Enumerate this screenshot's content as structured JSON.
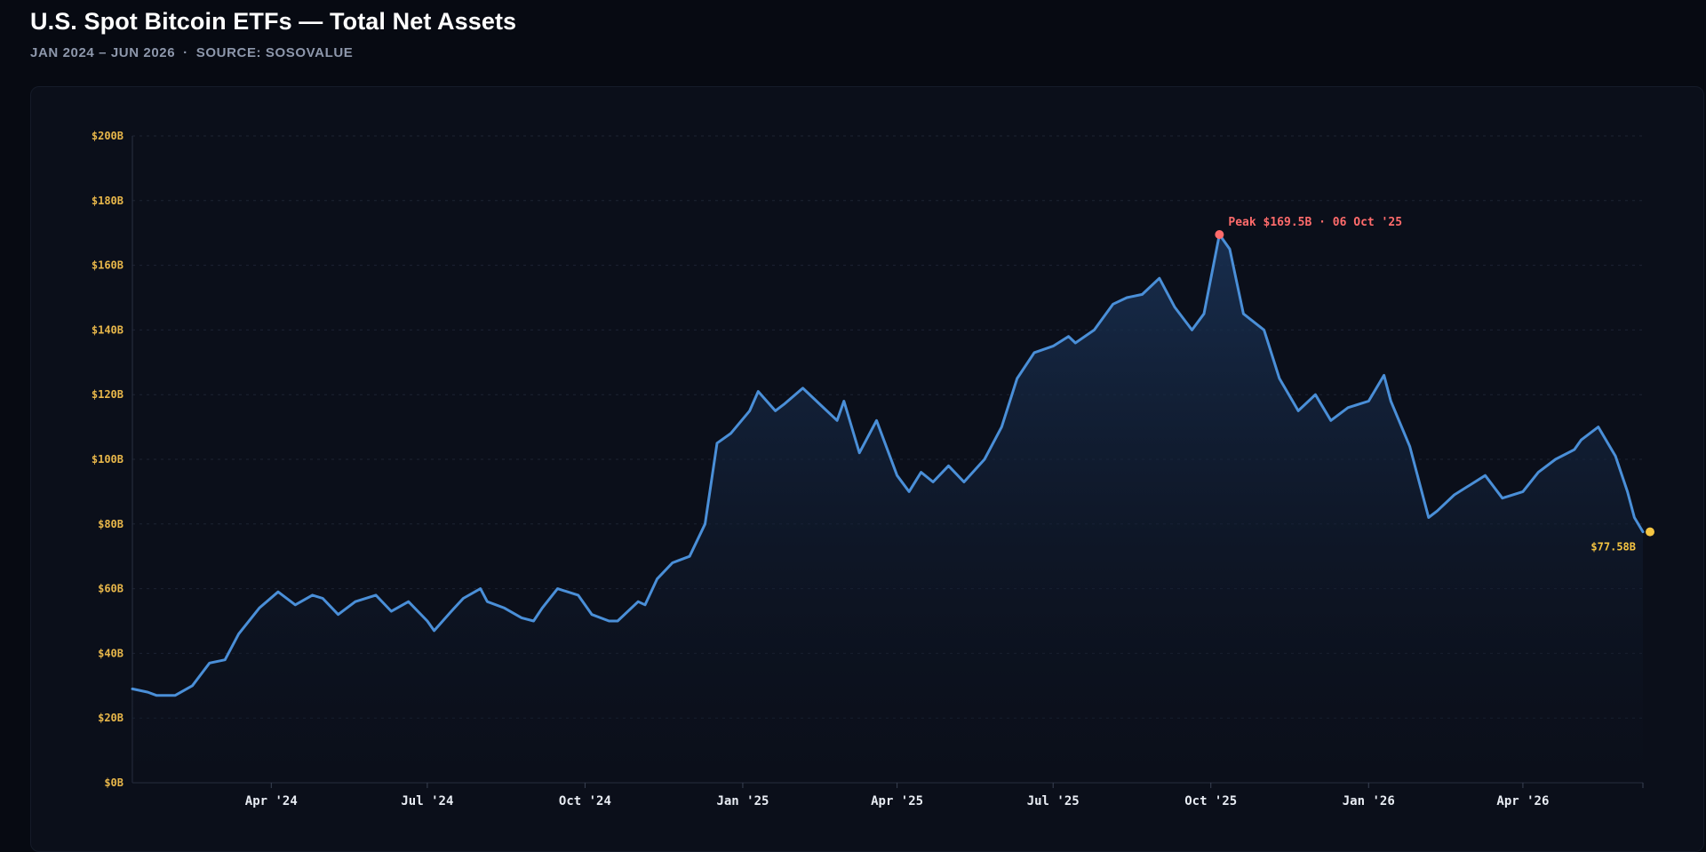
{
  "header": {
    "title": "U.S. Spot Bitcoin ETFs — Total Net Assets",
    "range": "JAN 2024 – JUN 2026",
    "source": "SOURCE: SOSOVALUE"
  },
  "colors": {
    "line": "#4a8fd8",
    "area_top": "#1a3357",
    "peak": "#ff6b6b",
    "end": "#f5c542",
    "ytick": "#e8b74a"
  },
  "chart_data": {
    "type": "area",
    "grid": true,
    "ylim": [
      0,
      200
    ],
    "yunit": "$B",
    "y_ticks": [
      "$0B",
      "$20B",
      "$40B",
      "$60B",
      "$80B",
      "$100B",
      "$120B",
      "$140B",
      "$160B",
      "$180B",
      "$200B"
    ],
    "x_ticks": [
      "Apr '24",
      "Jul '24",
      "Oct '24",
      "Jan '25",
      "Apr '25",
      "Jul '25",
      "Oct '25",
      "Jan '26",
      "Apr '26"
    ],
    "xlim": [
      "2024-01-11",
      "2026-06-10"
    ],
    "x": [
      "2024-01-11",
      "2024-01-20",
      "2024-01-25",
      "2024-02-05",
      "2024-02-15",
      "2024-02-25",
      "2024-03-05",
      "2024-03-13",
      "2024-03-25",
      "2024-04-05",
      "2024-04-15",
      "2024-04-25",
      "2024-05-01",
      "2024-05-10",
      "2024-05-20",
      "2024-06-01",
      "2024-06-10",
      "2024-06-20",
      "2024-07-01",
      "2024-07-05",
      "2024-07-15",
      "2024-07-22",
      "2024-08-01",
      "2024-08-05",
      "2024-08-15",
      "2024-08-25",
      "2024-09-01",
      "2024-09-06",
      "2024-09-15",
      "2024-09-27",
      "2024-10-05",
      "2024-10-15",
      "2024-10-20",
      "2024-11-01",
      "2024-11-05",
      "2024-11-12",
      "2024-11-21",
      "2024-12-01",
      "2024-12-10",
      "2024-12-17",
      "2024-12-25",
      "2025-01-05",
      "2025-01-10",
      "2025-01-20",
      "2025-01-25",
      "2025-02-05",
      "2025-02-15",
      "2025-02-25",
      "2025-03-01",
      "2025-03-10",
      "2025-03-20",
      "2025-04-01",
      "2025-04-08",
      "2025-04-15",
      "2025-04-22",
      "2025-05-01",
      "2025-05-10",
      "2025-05-22",
      "2025-06-01",
      "2025-06-10",
      "2025-06-20",
      "2025-07-01",
      "2025-07-10",
      "2025-07-14",
      "2025-07-25",
      "2025-08-05",
      "2025-08-13",
      "2025-08-22",
      "2025-09-01",
      "2025-09-10",
      "2025-09-20",
      "2025-09-27",
      "2025-10-06",
      "2025-10-12",
      "2025-10-20",
      "2025-11-01",
      "2025-11-10",
      "2025-11-21",
      "2025-12-01",
      "2025-12-10",
      "2025-12-20",
      "2026-01-01",
      "2026-01-10",
      "2026-01-14",
      "2026-01-25",
      "2026-02-05",
      "2026-02-10",
      "2026-02-20",
      "2026-03-01",
      "2026-03-10",
      "2026-03-20",
      "2026-04-01",
      "2026-04-10",
      "2026-04-20",
      "2026-05-01",
      "2026-05-05",
      "2026-05-15",
      "2026-05-25",
      "2026-06-01",
      "2026-06-05",
      "2026-06-10"
    ],
    "series": [
      {
        "values": [
          29,
          28,
          27,
          27,
          30,
          37,
          38,
          46,
          54,
          59,
          55,
          58,
          57,
          52,
          56,
          58,
          53,
          56,
          50,
          47,
          53,
          57,
          60,
          56,
          54,
          51,
          50,
          54,
          60,
          58,
          52,
          50,
          50,
          56,
          55,
          63,
          68,
          70,
          80,
          105,
          108,
          115,
          121,
          115,
          117,
          122,
          117,
          112,
          118,
          102,
          112,
          95,
          90,
          96,
          93,
          98,
          93,
          100,
          110,
          125,
          133,
          135,
          138,
          136,
          140,
          148,
          150,
          151,
          156,
          147,
          140,
          145,
          169.5,
          165,
          145,
          140,
          125,
          115,
          120,
          112,
          116,
          118,
          126,
          118,
          104,
          82,
          84,
          89,
          92,
          95,
          88,
          90,
          96,
          100,
          103,
          106,
          110,
          101,
          90,
          82,
          77.58
        ]
      }
    ],
    "annotations": {
      "peak": "Peak $169.5B · 06 Oct '25",
      "peak_value": 169.5,
      "peak_date": "2025-10-06",
      "last": "$77.58B",
      "last_value": 77.58,
      "last_date": "2026-06-10"
    }
  }
}
